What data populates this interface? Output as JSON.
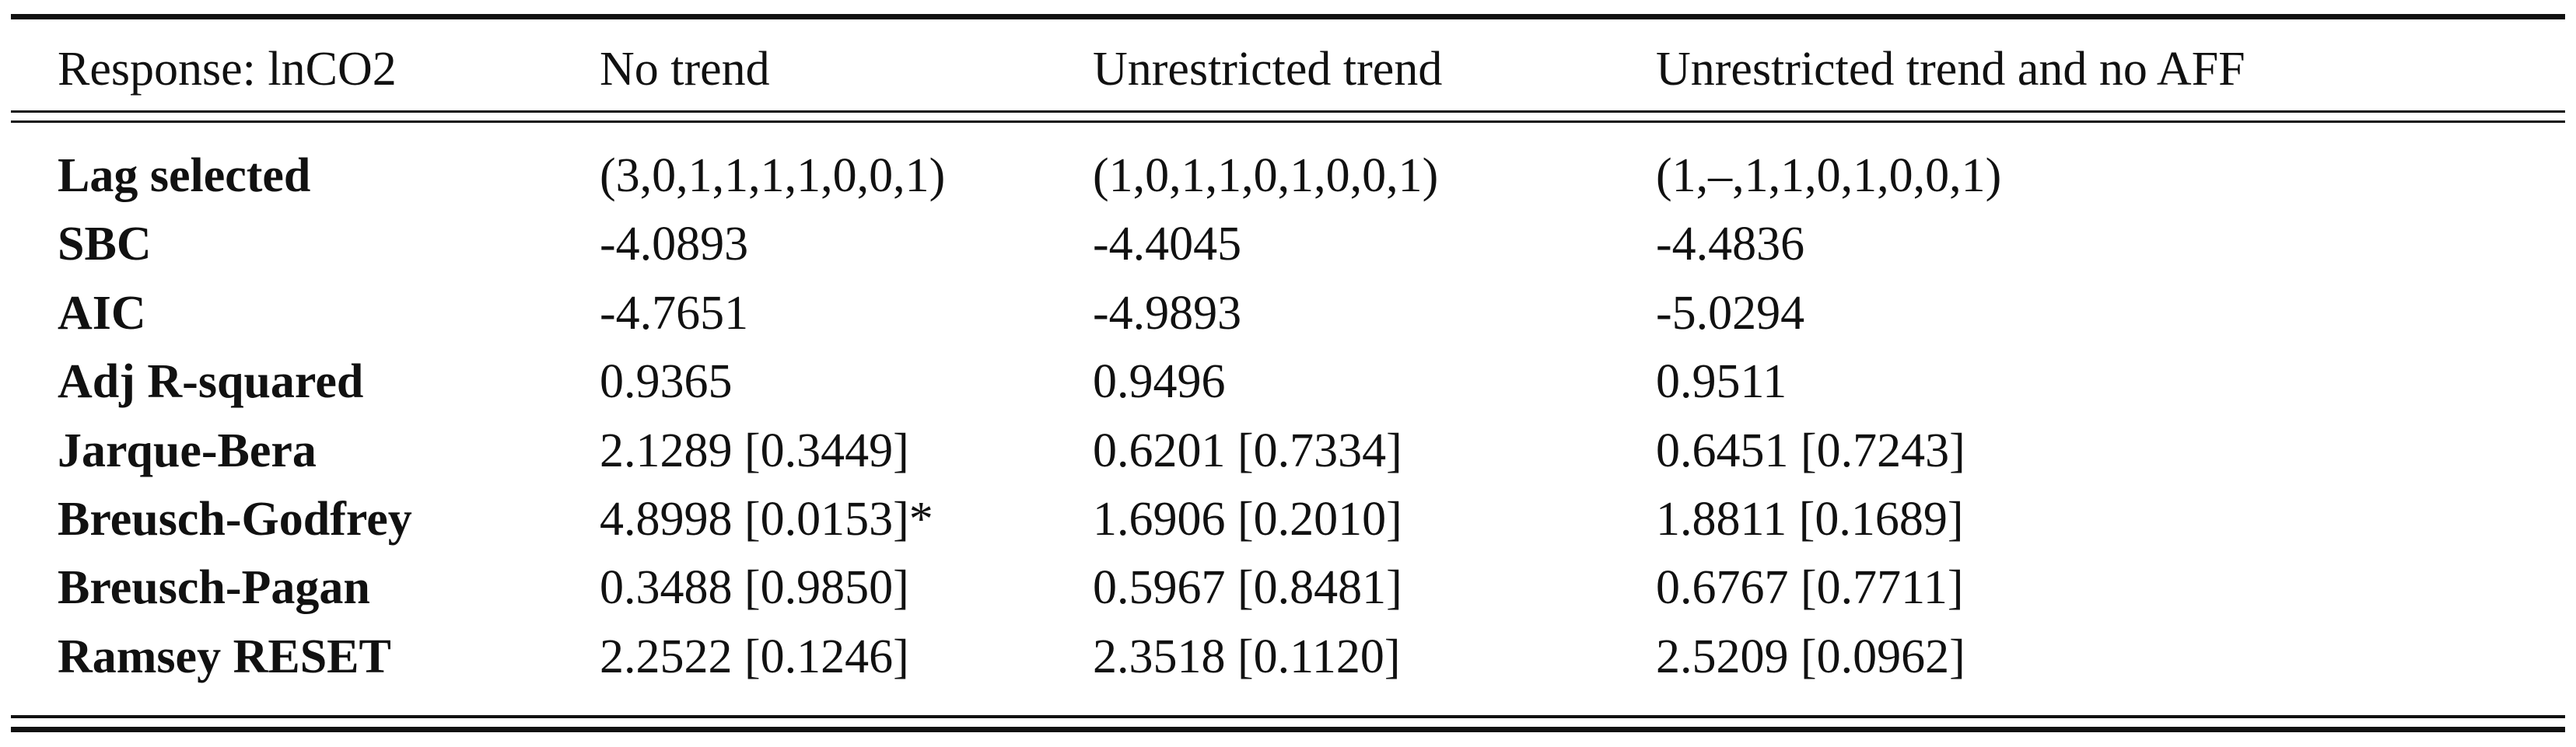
{
  "table": {
    "header": [
      "Response: lnCO2",
      "No trend",
      "Unrestricted trend",
      "Unrestricted trend and no AFF"
    ],
    "rows": [
      [
        "Lag selected",
        "(3,0,1,1,1,1,0,0,1)",
        "(1,0,1,1,0,1,0,0,1)",
        "(1,–,1,1,0,1,0,0,1)"
      ],
      [
        "SBC",
        "-4.0893",
        "-4.4045",
        "-4.4836"
      ],
      [
        "AIC",
        "-4.7651",
        "-4.9893",
        "-5.0294"
      ],
      [
        "Adj R-squared",
        "0.9365",
        "0.9496",
        "0.9511"
      ],
      [
        "Jarque-Bera",
        "2.1289 [0.3449]",
        "0.6201 [0.7334]",
        "0.6451 [0.7243]"
      ],
      [
        "Breusch-Godfrey",
        "4.8998 [0.0153]*",
        "1.6906 [0.2010]",
        "1.8811 [0.1689]"
      ],
      [
        "Breusch-Pagan",
        "0.3488 [0.9850]",
        "0.5967 [0.8481]",
        "0.6767 [0.7711]"
      ],
      [
        "Ramsey RESET",
        "2.2522 [0.1246]",
        "2.3518 [0.1120]",
        "2.5209 [0.0962]"
      ]
    ]
  }
}
